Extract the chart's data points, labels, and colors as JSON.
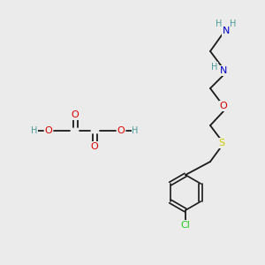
{
  "background_color": "#ebebeb",
  "fig_size": [
    3.0,
    3.0
  ],
  "dpi": 100,
  "colors": {
    "C": "#000000",
    "N_blue": "#0000cc",
    "N_h": "#4a9a9a",
    "O": "#dd0000",
    "S": "#cccc00",
    "Cl": "#22cc22",
    "H": "#4a9a9a",
    "bond": "#1a1a1a"
  },
  "fs": 7.0,
  "fs_large": 8.0
}
